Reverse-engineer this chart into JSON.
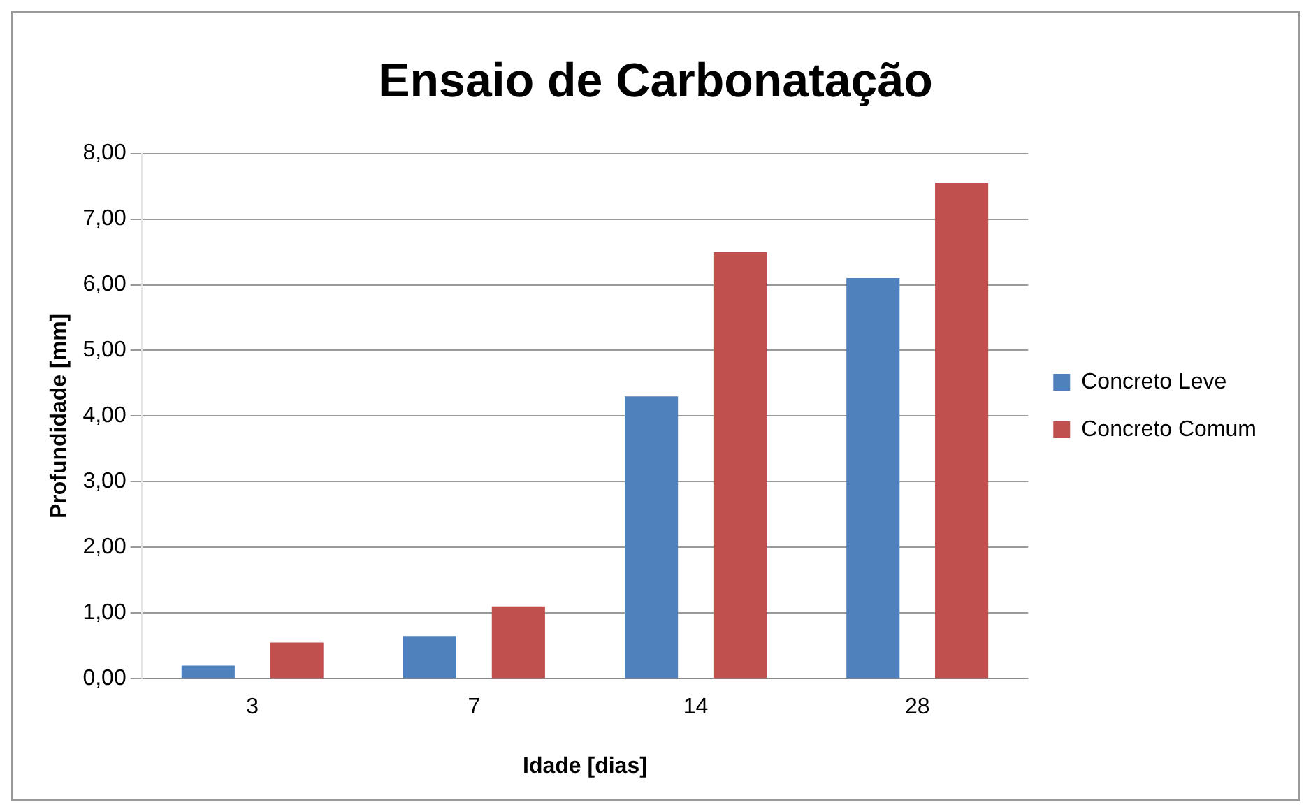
{
  "chart_data": {
    "type": "bar",
    "title": "Ensaio de Carbonatação",
    "xlabel": "Idade [dias]",
    "ylabel": "Profundidade [mm]",
    "categories": [
      "3",
      "7",
      "14",
      "28"
    ],
    "series": [
      {
        "name": "Concreto Leve",
        "color": "#4f81bd",
        "values": [
          0.2,
          0.65,
          4.3,
          6.1
        ]
      },
      {
        "name": "Concreto Comum",
        "color": "#c0504d",
        "values": [
          0.55,
          1.1,
          6.5,
          7.55
        ]
      }
    ],
    "ylim": [
      0,
      8
    ],
    "yticks": [
      {
        "value": 0,
        "label": "0,00"
      },
      {
        "value": 1,
        "label": "1,00"
      },
      {
        "value": 2,
        "label": "2,00"
      },
      {
        "value": 3,
        "label": "3,00"
      },
      {
        "value": 4,
        "label": "4,00"
      },
      {
        "value": 5,
        "label": "5,00"
      },
      {
        "value": 6,
        "label": "6,00"
      },
      {
        "value": 7,
        "label": "7,00"
      },
      {
        "value": 8,
        "label": "8,00"
      }
    ],
    "grid": "y",
    "legend": "right"
  }
}
